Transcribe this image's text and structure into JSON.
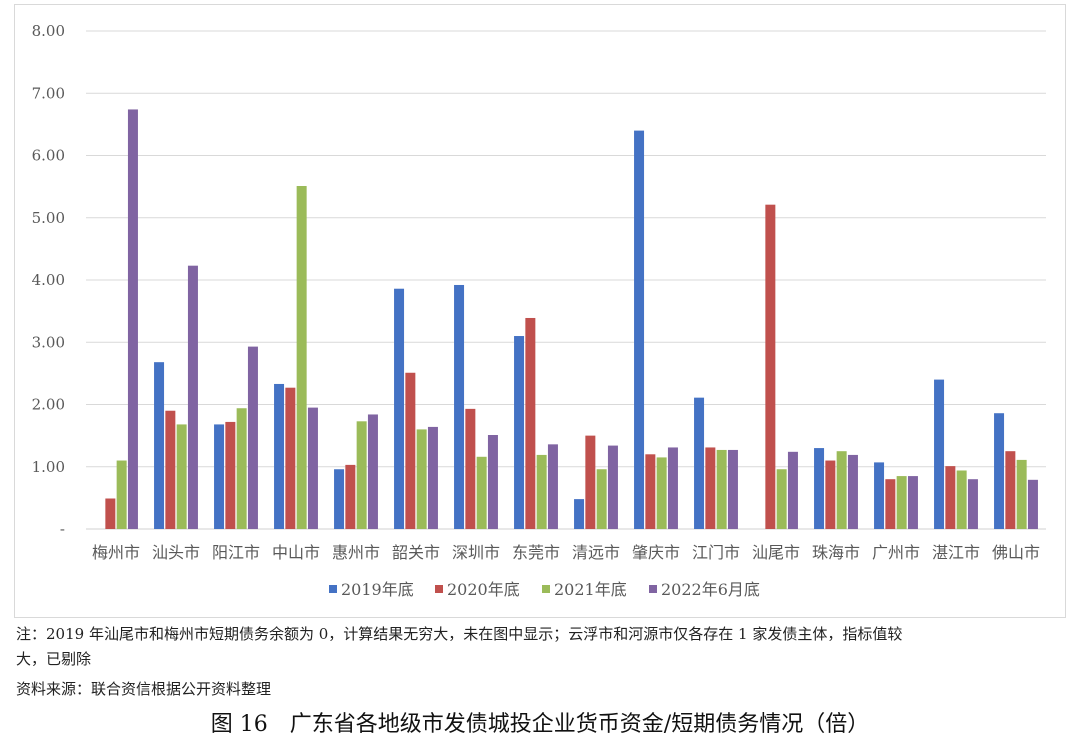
{
  "chart_data": {
    "type": "bar",
    "ylim": [
      0,
      8
    ],
    "yticks": [
      0,
      1,
      2,
      3,
      4,
      5,
      6,
      7,
      8
    ],
    "ytick_labels": [
      "-",
      "1.00",
      "2.00",
      "3.00",
      "4.00",
      "5.00",
      "6.00",
      "7.00",
      "8.00"
    ],
    "grid": true,
    "legend_position": "bottom",
    "categories": [
      "梅州市",
      "汕头市",
      "阳江市",
      "中山市",
      "惠州市",
      "韶关市",
      "深圳市",
      "东莞市",
      "清远市",
      "肇庆市",
      "江门市",
      "汕尾市",
      "珠海市",
      "广州市",
      "湛江市",
      "佛山市"
    ],
    "series": [
      {
        "name": "2019年底",
        "color": "#4472C4",
        "values": [
          null,
          2.68,
          1.68,
          2.33,
          0.96,
          3.86,
          3.92,
          3.1,
          0.48,
          6.4,
          2.11,
          null,
          1.3,
          1.07,
          2.4,
          1.86
        ]
      },
      {
        "name": "2020年底",
        "color": "#C0504D",
        "values": [
          0.49,
          1.9,
          1.72,
          2.27,
          1.03,
          2.51,
          1.93,
          3.39,
          1.5,
          1.2,
          1.31,
          5.21,
          1.1,
          0.8,
          1.01,
          1.25
        ]
      },
      {
        "name": "2021年底",
        "color": "#9BBB59",
        "values": [
          1.1,
          1.68,
          1.94,
          5.51,
          1.73,
          1.6,
          1.16,
          1.19,
          0.96,
          1.15,
          1.27,
          0.96,
          1.25,
          0.85,
          0.94,
          1.11
        ]
      },
      {
        "name": "2022年6月底",
        "color": "#8064A2",
        "values": [
          6.74,
          4.23,
          2.93,
          1.95,
          1.84,
          1.64,
          1.51,
          1.36,
          1.34,
          1.31,
          1.27,
          1.24,
          1.19,
          0.85,
          0.8,
          0.79
        ]
      }
    ]
  },
  "notes": {
    "line1": "注：2019 年汕尾市和梅州市短期债务余额为 0，计算结果无穷大，未在图中显示；云浮市和河源市仅各存在 1 家发债主体，指标值较",
    "line2": "大，已剔除",
    "source": "资料来源：联合资信根据公开资料整理"
  },
  "caption": "图 16　广东省各地级市发债城投企业货币资金/短期债务情况（倍）"
}
